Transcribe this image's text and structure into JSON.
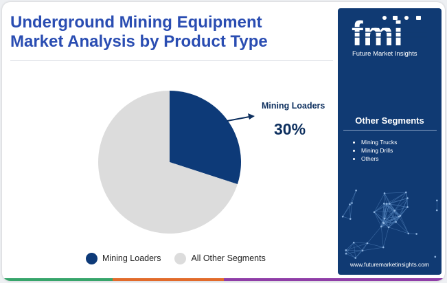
{
  "title_line1": "Underground Mining Equipment",
  "title_line2": "Market Analysis by Product Type",
  "chart_data": {
    "type": "pie",
    "slices": [
      {
        "label": "Mining Loaders",
        "value": 30,
        "color": "#0d3a78"
      },
      {
        "label": "All Other Segments",
        "value": 70,
        "color": "#dcdcdc"
      }
    ],
    "highlight": {
      "label": "Mining Loaders",
      "value_text": "30%"
    },
    "legend": [
      "Mining Loaders",
      "All Other Segments"
    ],
    "legend_position": "bottom"
  },
  "sidebar": {
    "logo_letters": "fmi",
    "logo_text": "Future Market Insights",
    "segments_title": "Other Segments",
    "segments": [
      "Mining Trucks",
      "Mining Drills",
      "Others"
    ],
    "website": "www.futuremarketinsights.com"
  },
  "colors": {
    "title": "#2a4db2",
    "sidebar_bg": "#103a73",
    "dark_navy": "#0d3a78",
    "bottom_bar": [
      "#37a56b",
      "#e26b2b",
      "#8f3ea7",
      "#8f3ea7"
    ]
  }
}
